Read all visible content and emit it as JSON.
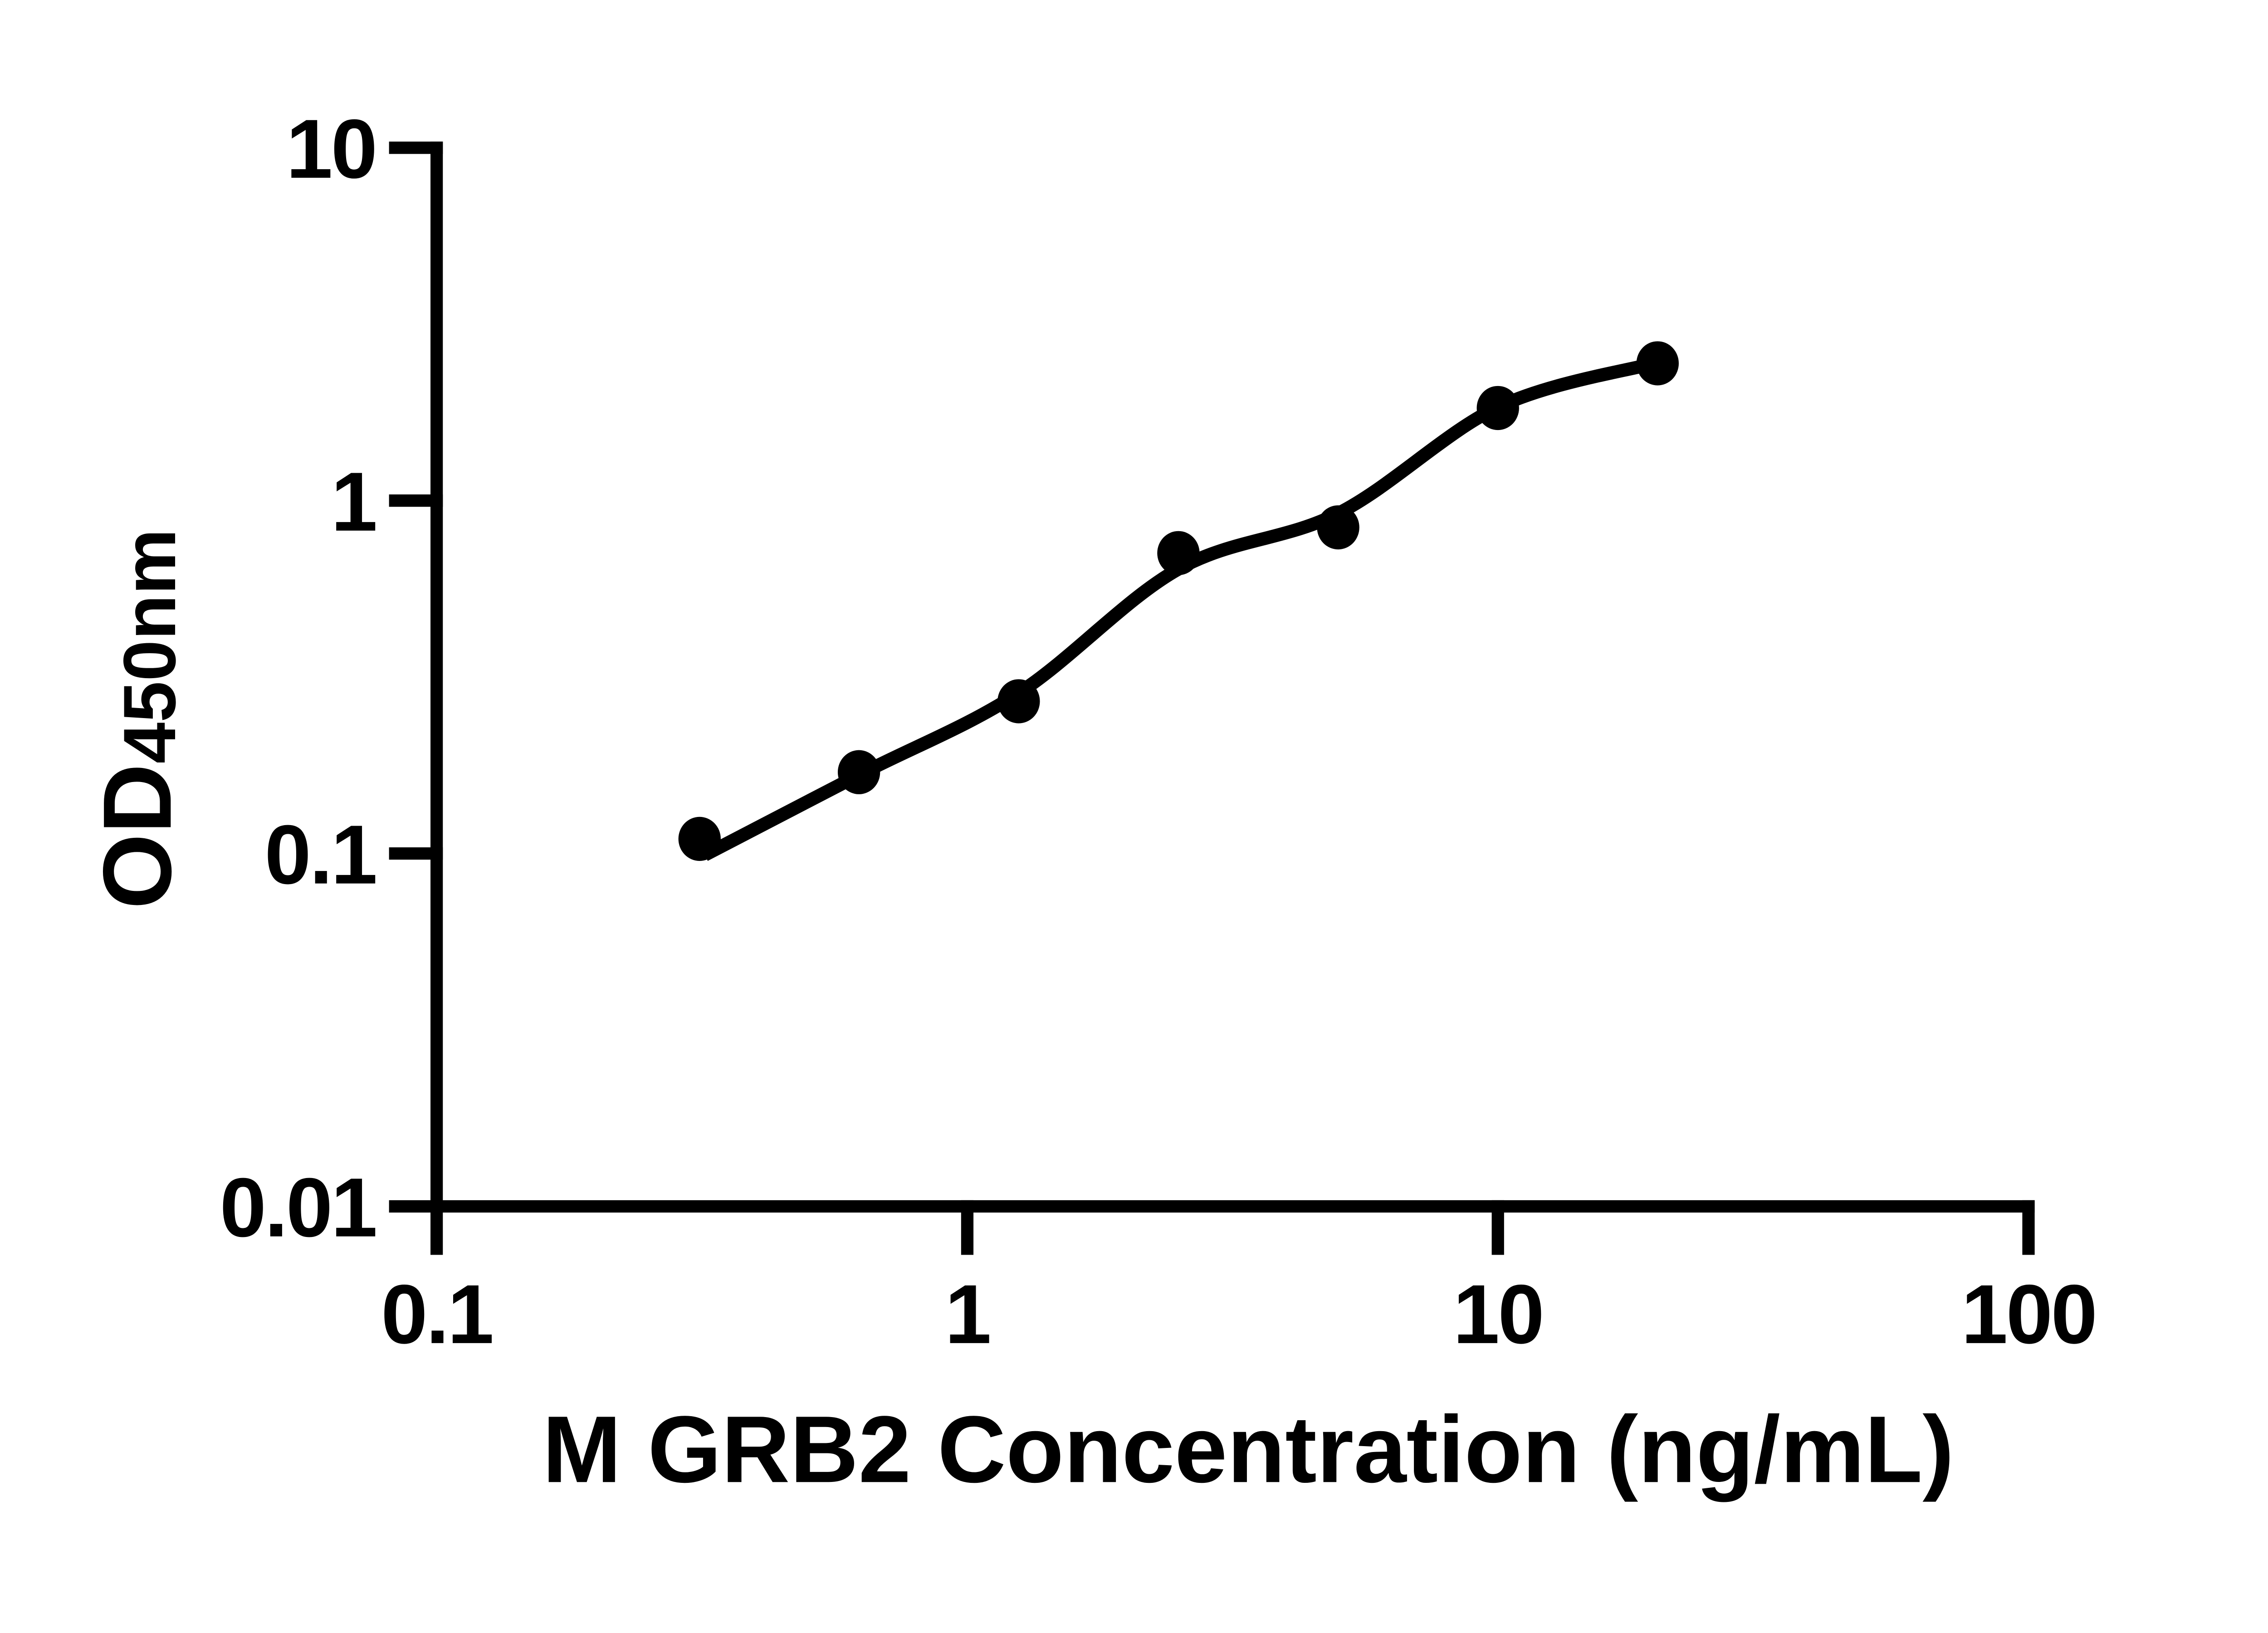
{
  "chart_data": {
    "type": "scatter",
    "title": "",
    "xlabel": "M GRB2 Concentration (ng/mL)",
    "ylabel": "OD",
    "ylabel_sub": "450nm",
    "xscale": "log",
    "yscale": "log",
    "xlim": [
      0.1,
      100
    ],
    "ylim": [
      0.01,
      10
    ],
    "grid": false,
    "legend": "none",
    "x_tick_labels": [
      "0.1",
      "1",
      "10",
      "100"
    ],
    "y_tick_labels": [
      "10",
      "1",
      "0.1",
      "0.01"
    ],
    "series": [
      {
        "marker": "filled-circle",
        "color": "#000000",
        "points": [
          {
            "x": 0.313,
            "y": 0.11
          },
          {
            "x": 0.625,
            "y": 0.17
          },
          {
            "x": 1.25,
            "y": 0.27
          },
          {
            "x": 2.5,
            "y": 0.71
          },
          {
            "x": 5,
            "y": 0.84
          },
          {
            "x": 10,
            "y": 1.83
          },
          {
            "x": 20,
            "y": 2.45
          }
        ]
      }
    ],
    "fit_curve": [
      {
        "x": 0.32,
        "y": 0.099
      },
      {
        "x": 0.63,
        "y": 0.168
      },
      {
        "x": 1.25,
        "y": 0.285
      },
      {
        "x": 2.5,
        "y": 0.64
      },
      {
        "x": 5,
        "y": 0.92
      },
      {
        "x": 10,
        "y": 1.84
      },
      {
        "x": 19.7,
        "y": 2.45
      }
    ],
    "colors": {
      "foreground": "#000000",
      "background": "#ffffff"
    }
  }
}
